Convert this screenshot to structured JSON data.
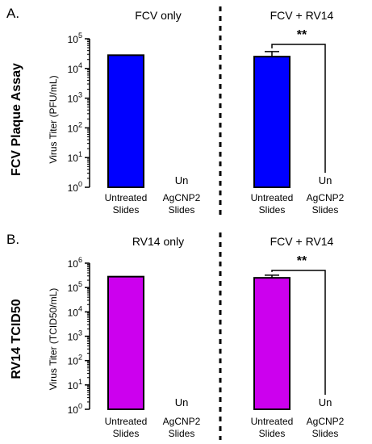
{
  "panels": [
    {
      "label": "A.",
      "side_title": "FCV Plaque Assay",
      "ylabel": "Virus Titer (PFU/mL)",
      "group_titles": [
        "FCV only",
        "FCV + RV14"
      ],
      "significance": "**",
      "not_detected_label": "Un",
      "chart_data": {
        "type": "bar",
        "yscale": "log",
        "ylim": [
          1,
          100000
        ],
        "y_ticks": [
          {
            "value": 1,
            "base": "10",
            "exp": "0"
          },
          {
            "value": 10,
            "base": "10",
            "exp": "1"
          },
          {
            "value": 100,
            "base": "10",
            "exp": "2"
          },
          {
            "value": 1000,
            "base": "10",
            "exp": "3"
          },
          {
            "value": 10000,
            "base": "10",
            "exp": "4"
          },
          {
            "value": 100000,
            "base": "10",
            "exp": "5"
          }
        ],
        "categories": [
          {
            "line1": "Untreated",
            "line2": "Slides"
          },
          {
            "line1": "AgCNP2",
            "line2": "Slides"
          },
          {
            "line1": "Untreated",
            "line2": "Slides"
          },
          {
            "line1": "AgCNP2",
            "line2": "Slides"
          }
        ],
        "values": [
          28000,
          null,
          25000,
          null
        ],
        "errors_upper": [
          null,
          null,
          37000,
          null
        ],
        "color": "#0000ff"
      }
    },
    {
      "label": "B.",
      "side_title": "RV14 TCID50",
      "ylabel": "Virus Titer (TCID50/mL)",
      "group_titles": [
        "RV14 only",
        "FCV + RV14"
      ],
      "significance": "**",
      "not_detected_label": "Un",
      "chart_data": {
        "type": "bar",
        "yscale": "log",
        "ylim": [
          1,
          1000000
        ],
        "y_ticks": [
          {
            "value": 1,
            "base": "10",
            "exp": "0"
          },
          {
            "value": 10,
            "base": "10",
            "exp": "1"
          },
          {
            "value": 100,
            "base": "10",
            "exp": "2"
          },
          {
            "value": 1000,
            "base": "10",
            "exp": "3"
          },
          {
            "value": 10000,
            "base": "10",
            "exp": "4"
          },
          {
            "value": 100000,
            "base": "10",
            "exp": "5"
          },
          {
            "value": 1000000,
            "base": "10",
            "exp": "6"
          }
        ],
        "categories": [
          {
            "line1": "Untreated",
            "line2": "Slides"
          },
          {
            "line1": "AgCNP2",
            "line2": "Slides"
          },
          {
            "line1": "Untreated",
            "line2": "Slides"
          },
          {
            "line1": "AgCNP2",
            "line2": "Slides"
          }
        ],
        "values": [
          280000,
          null,
          250000,
          null
        ],
        "errors_upper": [
          null,
          null,
          320000,
          null
        ],
        "color": "#cc00ee"
      }
    }
  ]
}
